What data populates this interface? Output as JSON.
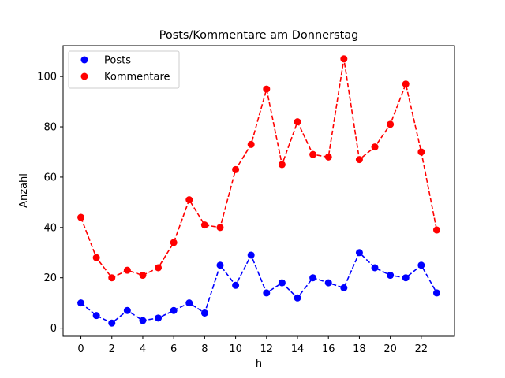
{
  "chart_data": {
    "type": "line",
    "title": "Posts/Kommentare am Donnerstag",
    "xlabel": "h",
    "ylabel": "Anzahl",
    "xlim": [
      -1.15,
      24.15
    ],
    "ylim": [
      -3.25,
      112.25
    ],
    "xticks": [
      0,
      2,
      4,
      6,
      8,
      10,
      12,
      14,
      16,
      18,
      20,
      22
    ],
    "yticks": [
      0,
      20,
      40,
      60,
      80,
      100
    ],
    "grid": false,
    "legend_position": "top-left",
    "x": [
      0,
      1,
      2,
      3,
      4,
      5,
      6,
      7,
      8,
      9,
      10,
      11,
      12,
      13,
      14,
      15,
      16,
      17,
      18,
      19,
      20,
      21,
      22,
      23
    ],
    "series": [
      {
        "name": "Posts",
        "color": "#0000ff",
        "values": [
          10,
          5,
          2,
          7,
          3,
          4,
          7,
          10,
          6,
          25,
          17,
          29,
          14,
          18,
          12,
          20,
          18,
          16,
          30,
          24,
          21,
          20,
          25,
          14
        ]
      },
      {
        "name": "Kommentare",
        "color": "#ff0000",
        "values": [
          44,
          28,
          20,
          23,
          21,
          24,
          34,
          51,
          41,
          40,
          63,
          73,
          95,
          65,
          82,
          69,
          68,
          107,
          67,
          72,
          81,
          97,
          70,
          39
        ]
      }
    ]
  }
}
